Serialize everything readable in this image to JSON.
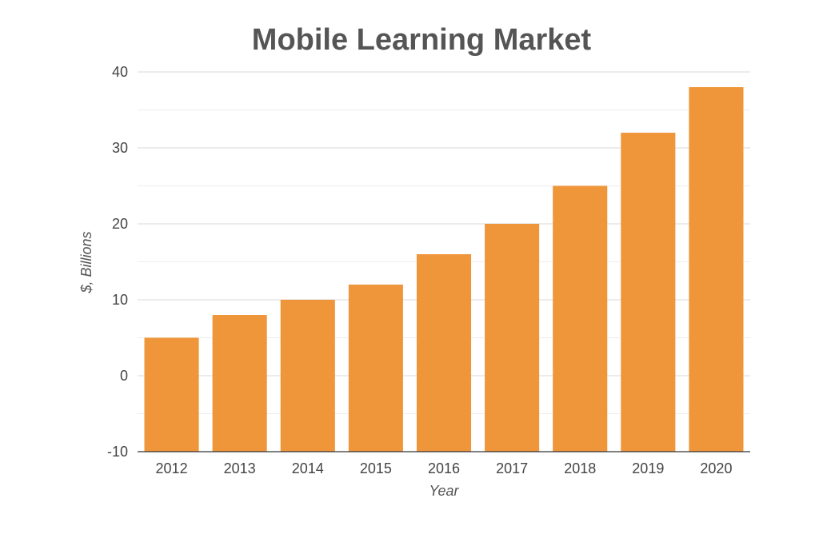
{
  "chart_data": {
    "type": "bar",
    "title": "Mobile Learning Market",
    "xlabel": "Year",
    "ylabel": "$, Billions",
    "categories": [
      "2012",
      "2013",
      "2014",
      "2015",
      "2016",
      "2017",
      "2018",
      "2019",
      "2020"
    ],
    "values": [
      5,
      8,
      10,
      12,
      16,
      20,
      25,
      32,
      38
    ],
    "ylim": [
      -10,
      40
    ],
    "yticks": [
      -10,
      0,
      10,
      20,
      30,
      40
    ],
    "yticks_labels": [
      "-10",
      "0",
      "10",
      "20",
      "30",
      "40"
    ],
    "minor_gridlines": true,
    "grid": true,
    "legend": "none",
    "bar_color": "#F0963A"
  }
}
